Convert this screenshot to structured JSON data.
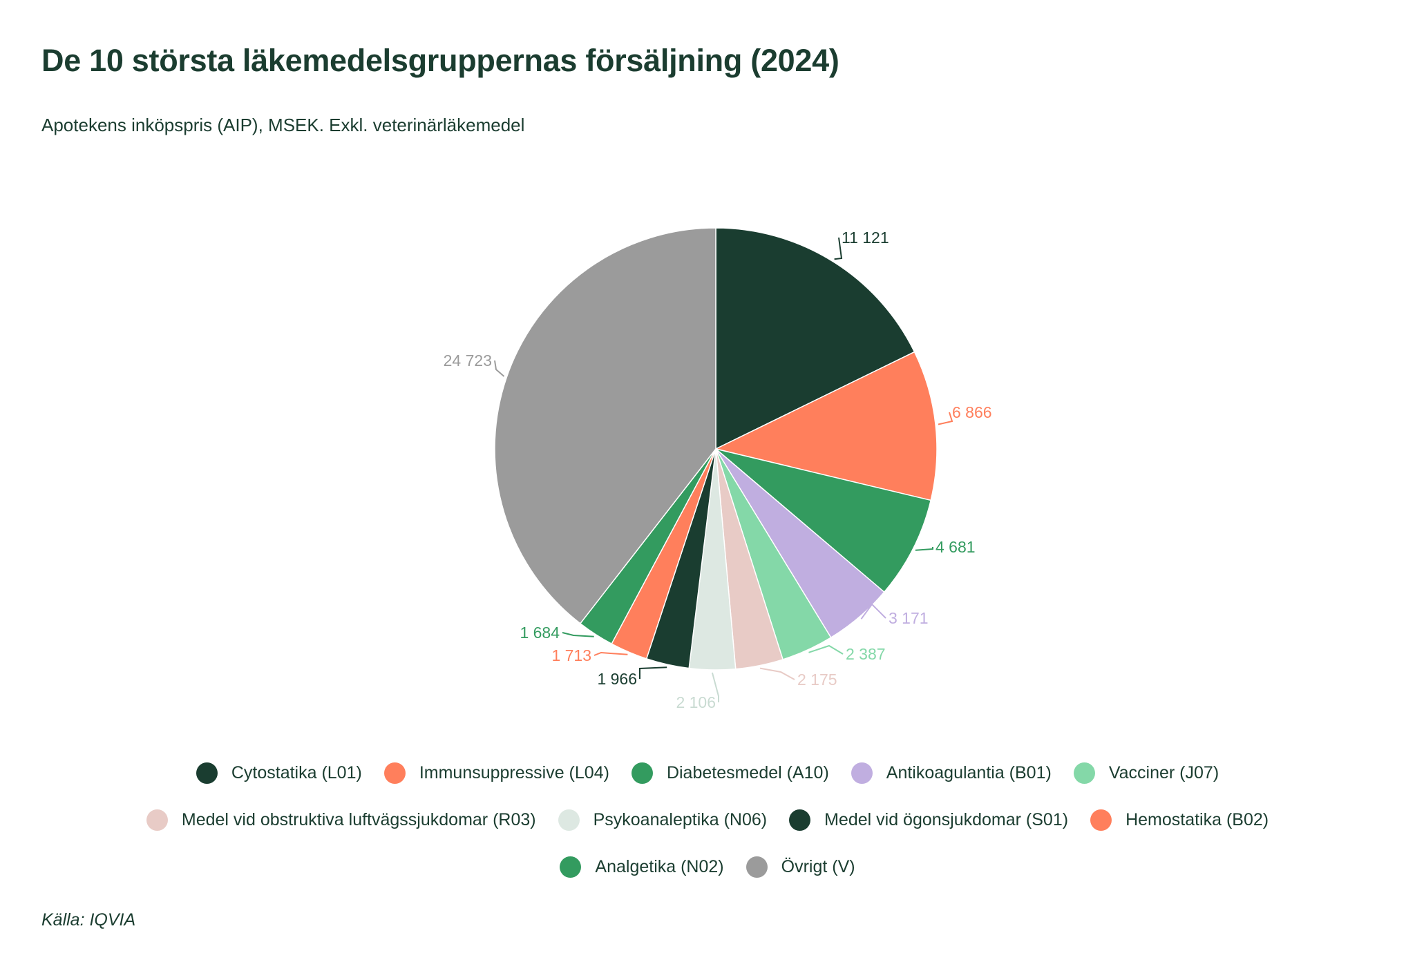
{
  "title": "De 10 största läkemedelsgruppernas försäljning (2024)",
  "subtitle": "Apotekens inköpspris (AIP), MSEK. Exkl. veterinärläkemedel",
  "source": "Källa: IQVIA",
  "chart_data": {
    "type": "pie",
    "title": "De 10 största läkemedelsgruppernas försäljning (2024)",
    "subtitle": "Apotekens inköpspris (AIP), MSEK. Exkl. veterinärläkemedel",
    "start_angle": "12 o'clock, clockwise",
    "legend_position": "bottom",
    "slices": [
      {
        "label": "Cytostatika (L01)",
        "value": 11121,
        "value_label": "11 121",
        "color": "#1a3d30"
      },
      {
        "label": "Immunsuppressive (L04)",
        "value": 6866,
        "value_label": "6 866",
        "color": "#ff7f5c"
      },
      {
        "label": "Diabetesmedel (A10)",
        "value": 4681,
        "value_label": "4 681",
        "color": "#339b5f"
      },
      {
        "label": "Antikoagulantia (B01)",
        "value": 3171,
        "value_label": "3 171",
        "color": "#c0aee0"
      },
      {
        "label": "Vacciner (J07)",
        "value": 2387,
        "value_label": "2 387",
        "color": "#84d8a8"
      },
      {
        "label": "Medel vid obstruktiva luftvägssjukdomar (R03)",
        "value": 2175,
        "value_label": "2 175",
        "color": "#e8cbc6"
      },
      {
        "label": "Psykoanaleptika (N06)",
        "value": 2106,
        "value_label": "2 106",
        "color": "#dde8e2"
      },
      {
        "label": "Medel vid ögonsjukdomar (S01)",
        "value": 1966,
        "value_label": "1 966",
        "color": "#1a3d30"
      },
      {
        "label": "Hemostatika (B02)",
        "value": 1713,
        "value_label": "1 713",
        "color": "#ff7f5c"
      },
      {
        "label": "Analgetika (N02)",
        "value": 1684,
        "value_label": "1 684",
        "color": "#339b5f"
      },
      {
        "label": "Övrigt (V)",
        "value": 24723,
        "value_label": "24 723",
        "color": "#9b9b9b"
      }
    ]
  }
}
